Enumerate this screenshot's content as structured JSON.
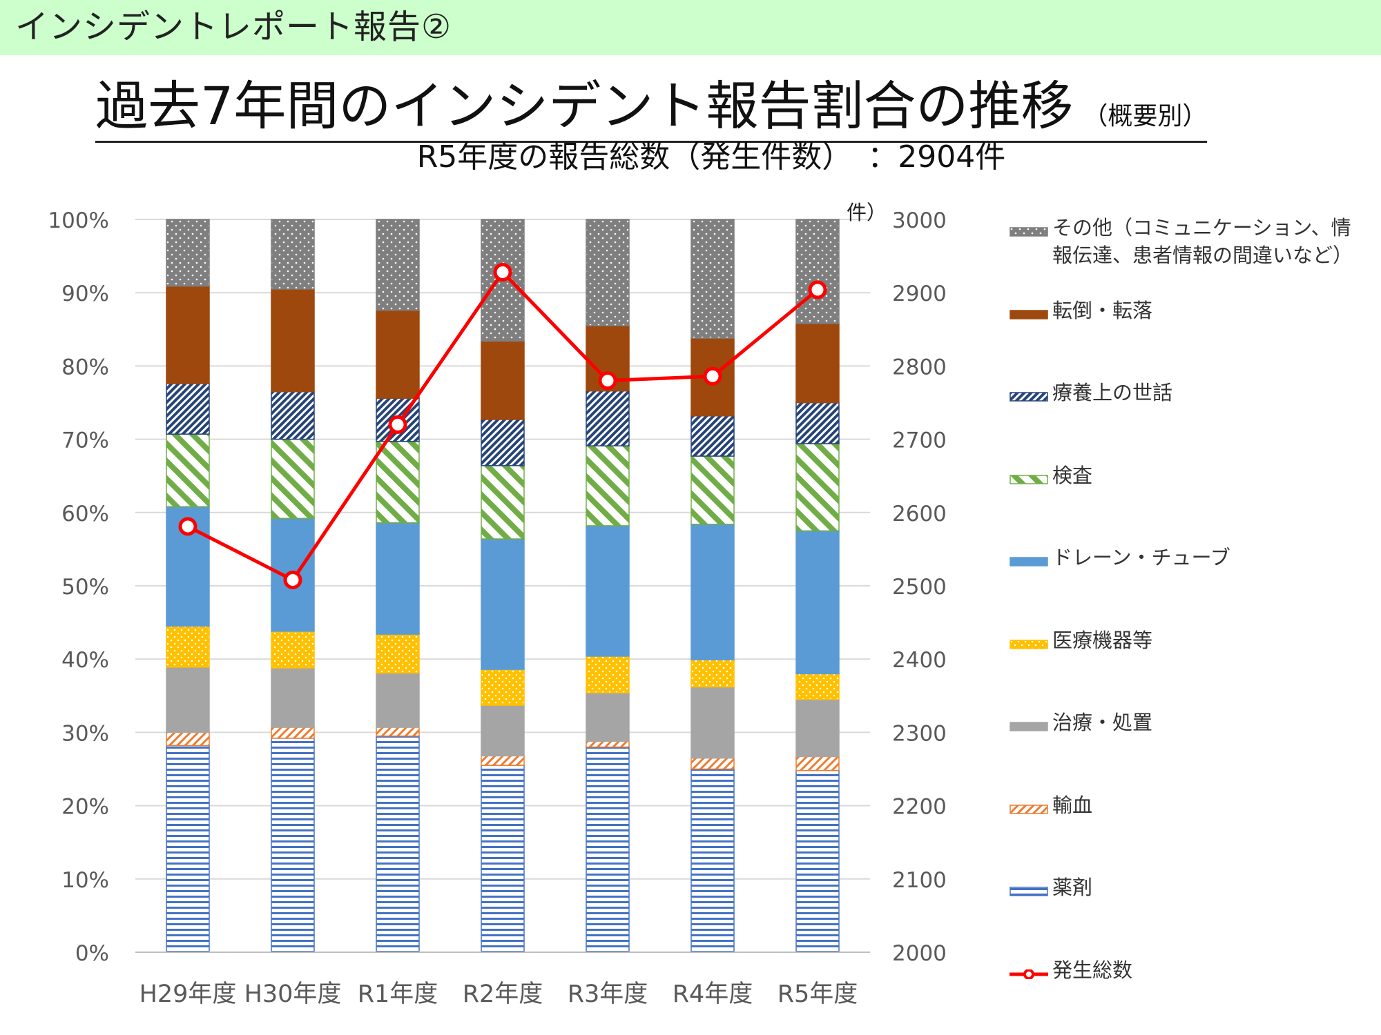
{
  "header": {
    "banner_title": "インシデントレポート報告②"
  },
  "title": {
    "main": "過去7年間のインシデント報告割合の推移",
    "suffix": "（概要別）"
  },
  "subtitle": "R5年度の報告総数（発生件数）　：2904件",
  "chart_data": {
    "type": "bar",
    "stacked": true,
    "stacked_percent": true,
    "categories": [
      "H29年度",
      "H30年度",
      "R1年度",
      "R2年度",
      "R3年度",
      "R4年度",
      "R5年度"
    ],
    "left_axis": {
      "ylim": [
        0,
        100
      ],
      "ticks": [
        0,
        10,
        20,
        30,
        40,
        50,
        60,
        70,
        80,
        90,
        100
      ],
      "tick_labels": [
        "0%",
        "10%",
        "20%",
        "30%",
        "40%",
        "50%",
        "60%",
        "70%",
        "80%",
        "90%",
        "100%"
      ]
    },
    "right_axis": {
      "unit_label": "件）",
      "ylim": [
        2000,
        3000
      ],
      "ticks": [
        2000,
        2100,
        2200,
        2300,
        2400,
        2500,
        2600,
        2700,
        2800,
        2900,
        3000
      ],
      "tick_labels": [
        "2000",
        "2100",
        "2200",
        "2300",
        "2400",
        "2500",
        "2600",
        "2700",
        "2800",
        "2900",
        "3000"
      ]
    },
    "gridlines": true,
    "legend_position": "right",
    "series": [
      {
        "name": "薬剤",
        "pattern": "hstripes",
        "color": "#4472c4",
        "values": [
          28.2,
          29.2,
          29.5,
          25.5,
          28.0,
          25.0,
          24.8
        ]
      },
      {
        "name": "輸血",
        "pattern": "diagonal-light",
        "color": "#ed7d31",
        "values": [
          1.8,
          1.5,
          1.2,
          1.3,
          0.8,
          1.5,
          1.9
        ]
      },
      {
        "name": "治療・処置",
        "pattern": "solid",
        "color": "#a5a5a5",
        "values": [
          8.9,
          8.1,
          7.4,
          6.9,
          6.6,
          9.7,
          7.8
        ]
      },
      {
        "name": "医療機器等",
        "pattern": "dots",
        "color": "#ffc000",
        "values": [
          5.6,
          5.0,
          5.3,
          4.9,
          5.0,
          3.7,
          3.5
        ]
      },
      {
        "name": "ドレーン・チューブ",
        "pattern": "solid",
        "color": "#5b9bd5",
        "values": [
          16.3,
          15.4,
          15.2,
          17.8,
          17.8,
          18.5,
          19.5
        ]
      },
      {
        "name": "検査",
        "pattern": "diagonal-wide",
        "color": "#70ad47",
        "values": [
          9.9,
          10.8,
          11.1,
          10.0,
          10.9,
          9.3,
          11.9
        ]
      },
      {
        "name": "療養上の世話",
        "pattern": "diagonal-dark",
        "color": "#264478",
        "values": [
          6.9,
          6.5,
          5.9,
          6.3,
          7.5,
          5.5,
          5.6
        ]
      },
      {
        "name": "転倒・転落",
        "pattern": "solid",
        "color": "#9e480e",
        "values": [
          13.3,
          14.0,
          12.0,
          10.7,
          8.9,
          10.6,
          10.8
        ]
      },
      {
        "name": "その他（コミュニケーション、情報伝達、患者情報の間違いなど）",
        "pattern": "dots-light",
        "color": "#7f7f7f",
        "values": [
          9.1,
          9.5,
          12.4,
          16.6,
          14.5,
          16.2,
          14.2
        ]
      }
    ],
    "line_series": {
      "name": "発生総数",
      "color": "#ff0000",
      "axis": "right",
      "values": [
        2581,
        2508,
        2720,
        2928,
        2780,
        2786,
        2904
      ]
    }
  }
}
